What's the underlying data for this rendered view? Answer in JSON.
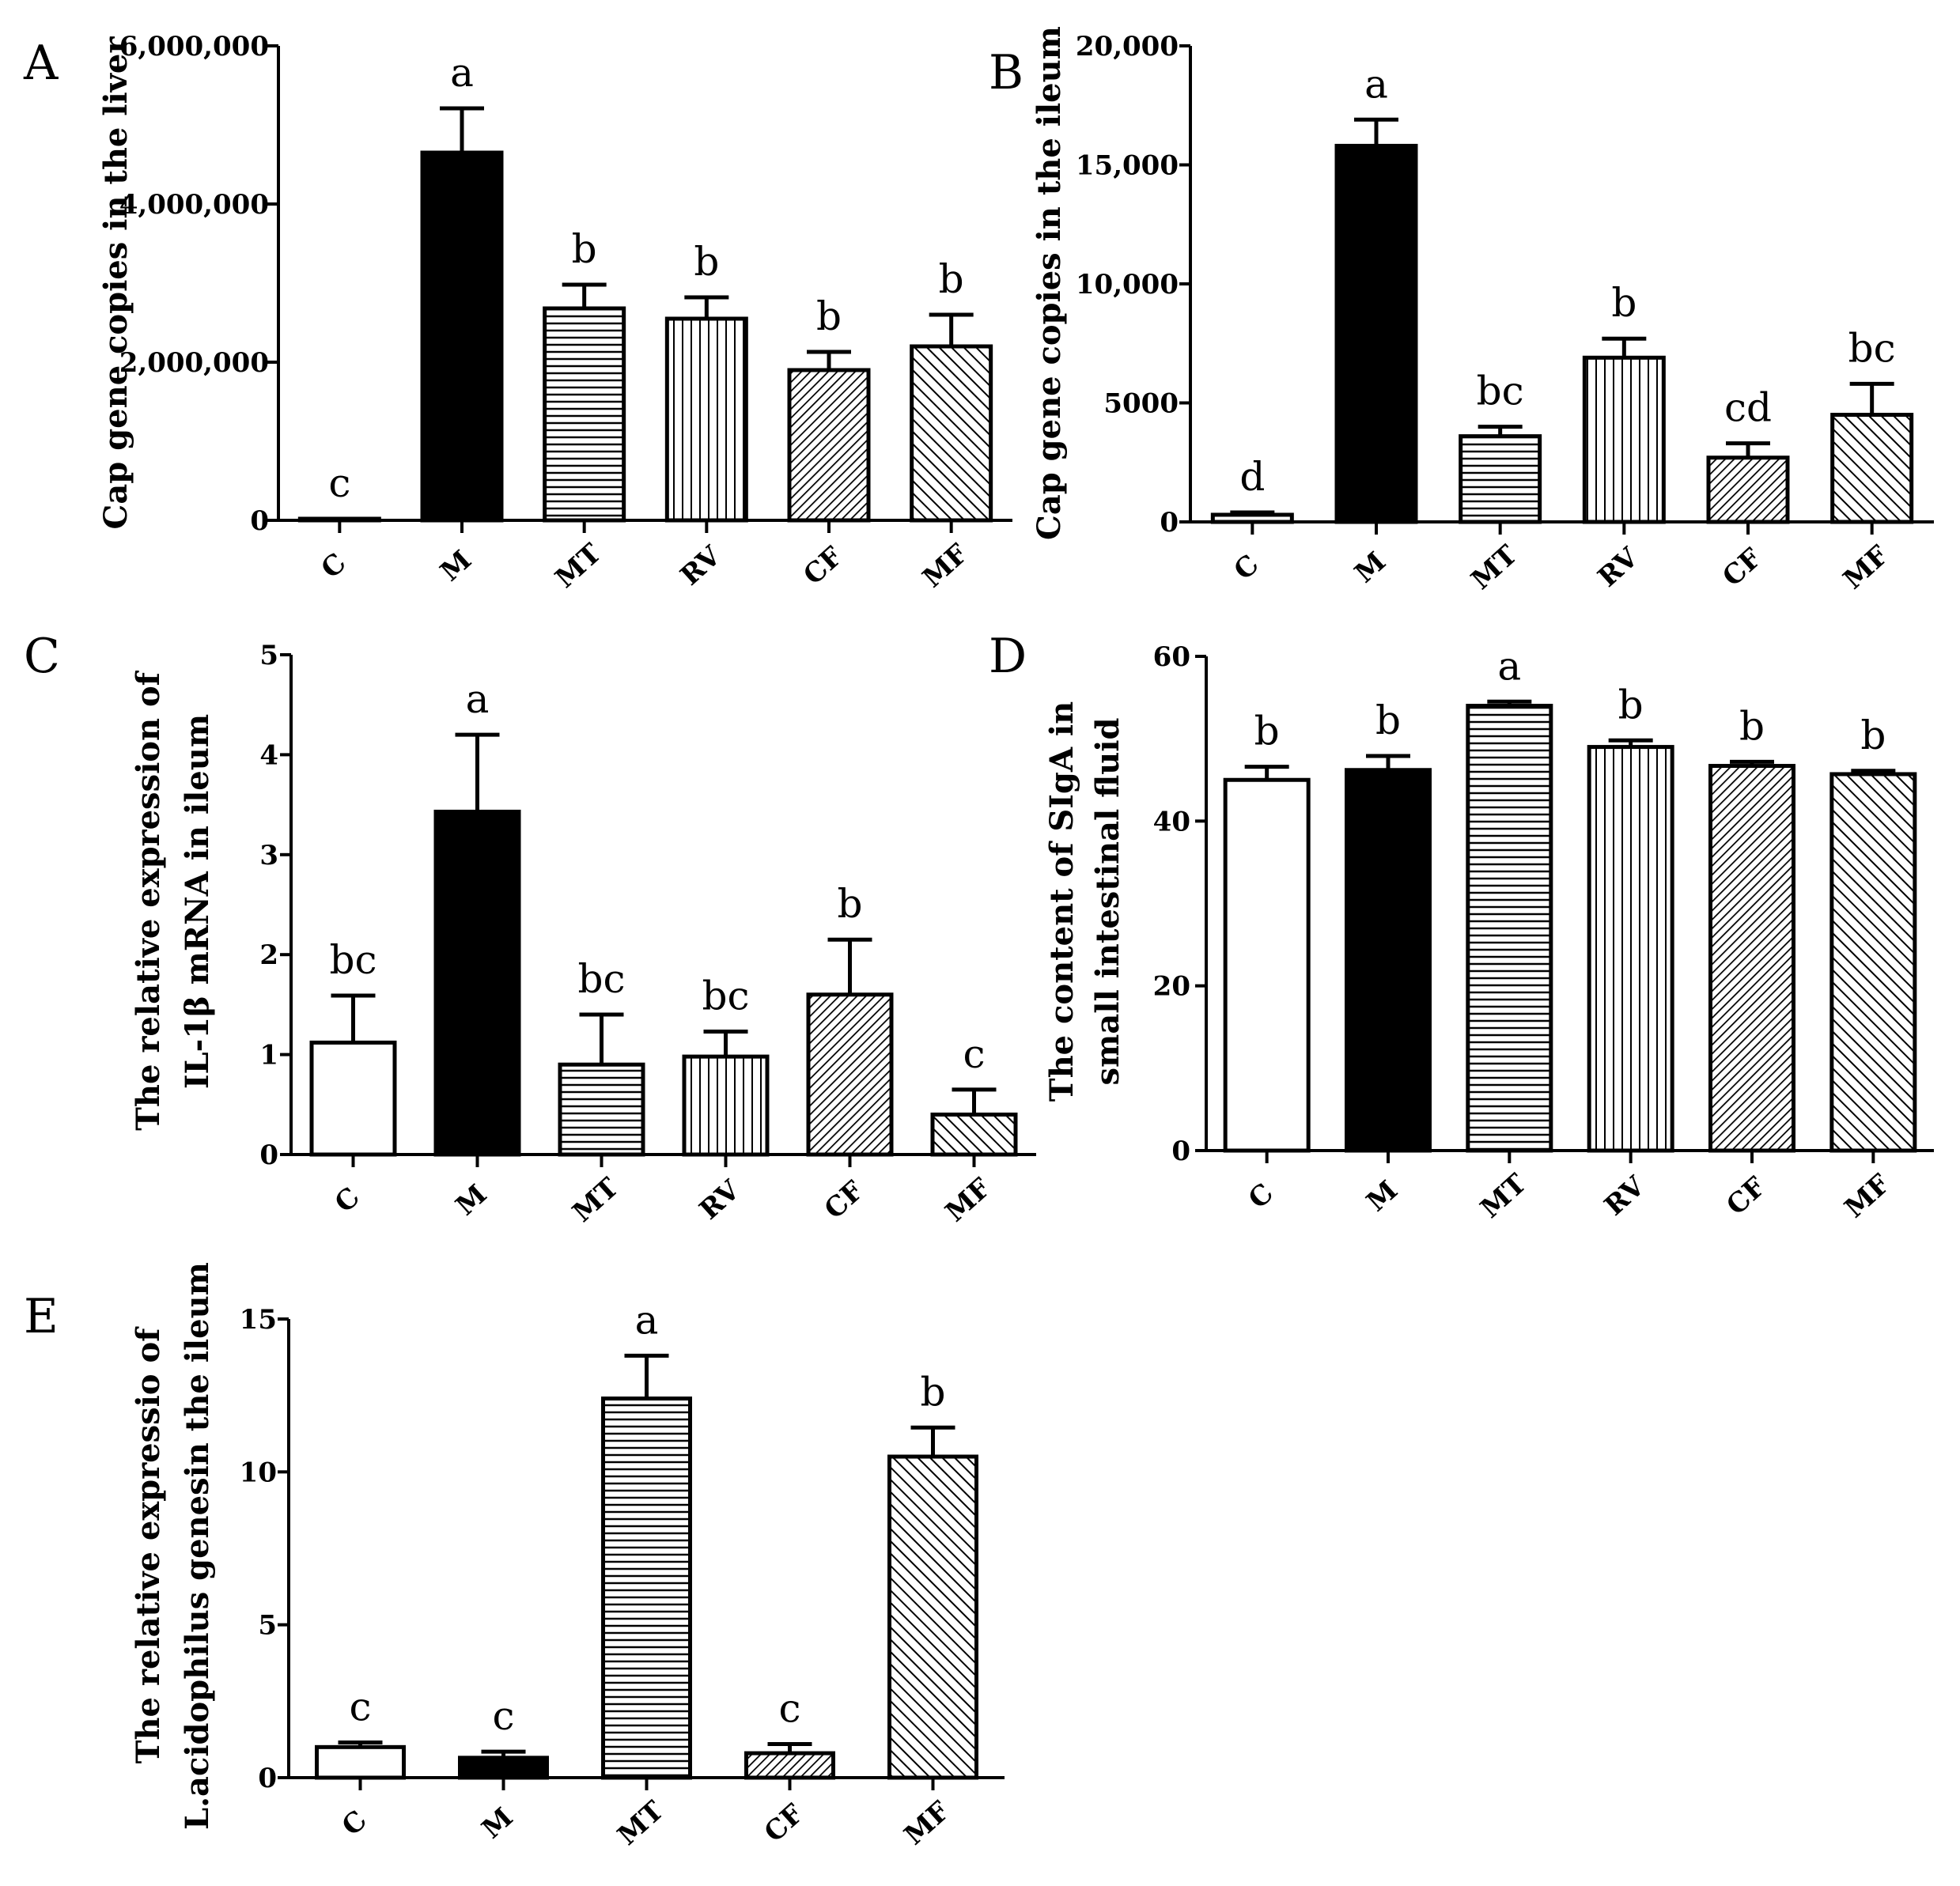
{
  "chart_data": [
    {
      "id": "A",
      "type": "bar",
      "panel_label": "A",
      "ylabel": [
        "Cap gene copies in the liver"
      ],
      "categories": [
        "C",
        "M",
        "MT",
        "RV",
        "CF",
        "MF"
      ],
      "values": [
        20000,
        4650000,
        2680000,
        2550000,
        1900000,
        2200000
      ],
      "errors": [
        0,
        560000,
        300000,
        270000,
        230000,
        400000
      ],
      "significance": [
        "c",
        "a",
        "b",
        "b",
        "b",
        "b"
      ],
      "ylim": [
        0,
        6000000
      ],
      "yticks": [
        0,
        2000000,
        4000000,
        6000000
      ],
      "ytick_labels": [
        "0",
        "2,000,000",
        "4,000,000",
        "6,000,000"
      ]
    },
    {
      "id": "B",
      "type": "bar",
      "panel_label": "B",
      "ylabel": [
        "Cap gene copies in the ileum"
      ],
      "categories": [
        "C",
        "M",
        "MT",
        "RV",
        "CF",
        "MF"
      ],
      "values": [
        300,
        15800,
        3600,
        6900,
        2700,
        4500
      ],
      "errors": [
        100,
        1100,
        400,
        800,
        600,
        1300
      ],
      "significance": [
        "d",
        "a",
        "bc",
        "b",
        "cd",
        "bc"
      ],
      "ylim": [
        0,
        20000
      ],
      "yticks": [
        0,
        5000,
        10000,
        15000,
        20000
      ],
      "ytick_labels": [
        "0",
        "5000",
        "10,000",
        "15,000",
        "20,000"
      ]
    },
    {
      "id": "C",
      "type": "bar",
      "panel_label": "C",
      "ylabel": [
        "The relative expression of",
        "IL-1β  mRNA in ileum"
      ],
      "categories": [
        "C",
        "M",
        "MT",
        "RV",
        "CF",
        "MF"
      ],
      "values": [
        1.12,
        3.43,
        0.9,
        0.98,
        1.6,
        0.4
      ],
      "errors": [
        0.47,
        0.77,
        0.5,
        0.25,
        0.55,
        0.25
      ],
      "significance": [
        "bc",
        "a",
        "bc",
        "bc",
        "b",
        "c"
      ],
      "ylim": [
        0,
        5
      ],
      "yticks": [
        0,
        1,
        2,
        3,
        4,
        5
      ],
      "ytick_labels": [
        "0",
        "1",
        "2",
        "3",
        "4",
        "5"
      ]
    },
    {
      "id": "D",
      "type": "bar",
      "panel_label": "D",
      "ylabel": [
        "The content of SIgA in",
        "small intestinal fluid"
      ],
      "categories": [
        "C",
        "M",
        "MT",
        "RV",
        "CF",
        "MF"
      ],
      "values": [
        45,
        46.2,
        54,
        49,
        46.7,
        45.7
      ],
      "errors": [
        1.6,
        1.7,
        0.5,
        0.8,
        0.5,
        0.4
      ],
      "significance": [
        "b",
        "b",
        "a",
        "b",
        "b",
        "b"
      ],
      "ylim": [
        0,
        60
      ],
      "yticks": [
        0,
        20,
        40,
        60
      ],
      "ytick_labels": [
        "0",
        "20",
        "40",
        "60"
      ]
    },
    {
      "id": "E",
      "type": "bar",
      "panel_label": "E",
      "ylabel": [
        "The relative expressio of",
        "L.acidophilus genesin the ileum"
      ],
      "categories": [
        "C",
        "M",
        "MT",
        "CF",
        "MF"
      ],
      "values": [
        1.0,
        0.65,
        12.4,
        0.8,
        10.5
      ],
      "errors": [
        0.15,
        0.2,
        1.4,
        0.3,
        0.95
      ],
      "significance": [
        "c",
        "c",
        "a",
        "c",
        "b"
      ],
      "ylim": [
        0,
        15
      ],
      "yticks": [
        0,
        5,
        10,
        15
      ],
      "ytick_labels": [
        "0",
        "5",
        "10",
        "15"
      ]
    }
  ],
  "patterns": {
    "C": "white",
    "M": "black",
    "MT": "horizontal-lines",
    "RV": "vertical-lines",
    "CF": "diagonal-fine",
    "MF": "diagonal-coarse"
  }
}
